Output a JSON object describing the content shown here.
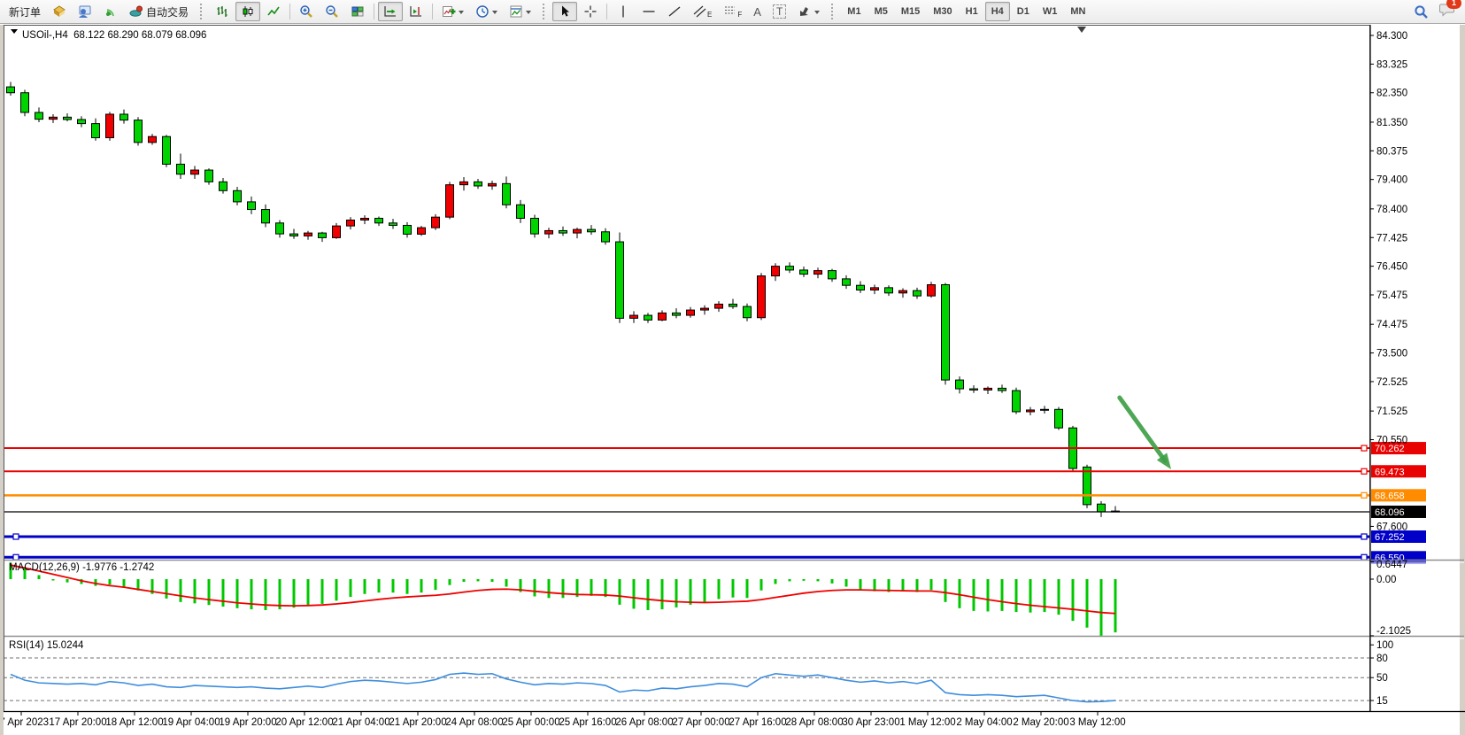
{
  "toolbar": {
    "new_order_label": "新订单",
    "autotrading_label": "自动交易",
    "text_tool_label": "A",
    "label_tool_label": "T",
    "channel_tool_sub": "E",
    "fibo_tool_sub": "F",
    "timeframes": [
      "M1",
      "M5",
      "M15",
      "M30",
      "H1",
      "H4",
      "D1",
      "W1",
      "MN"
    ],
    "active_timeframe": "H4",
    "notification_count": "1"
  },
  "chart": {
    "symbol_period": "USOil-,H4",
    "ohlc_text": "68.122 68.290 68.079 68.096",
    "macd_label": "MACD(12,26,9) -1.9776 -1.2742",
    "rsi_label": "RSI(14) 15.0244"
  },
  "chart_data": {
    "type": "candlestick",
    "title": "USOil-,H4",
    "main_ylim": [
      66.5,
      84.66
    ],
    "grid": "off",
    "price_axis_ticks": [
      84.3,
      83.325,
      82.35,
      81.35,
      80.375,
      79.4,
      78.4,
      77.425,
      76.45,
      75.475,
      74.475,
      73.5,
      72.525,
      71.525,
      70.55,
      67.6
    ],
    "time_labels": [
      "17 Apr 2023",
      "17 Apr 20:00",
      "18 Apr 12:00",
      "19 Apr 04:00",
      "19 Apr 20:00",
      "20 Apr 12:00",
      "21 Apr 04:00",
      "21 Apr 20:00",
      "24 Apr 08:00",
      "25 Apr 00:00",
      "25 Apr 16:00",
      "26 Apr 08:00",
      "27 Apr 00:00",
      "27 Apr 16:00",
      "28 Apr 08:00",
      "30 Apr 23:00",
      "1 May 12:00",
      "2 May 04:00",
      "2 May 20:00",
      "3 May 12:00"
    ],
    "colors": {
      "bull": "#f00000",
      "bear": "#00d400",
      "wick": "#000000",
      "macd_hist": "#00c800",
      "macd_signal": "#f00000",
      "rsi_line": "#3e8edd",
      "axis": "#000000"
    },
    "candles": [
      [
        82.55,
        82.72,
        82.25,
        82.35
      ],
      [
        82.35,
        82.45,
        81.55,
        81.68
      ],
      [
        81.68,
        81.85,
        81.35,
        81.45
      ],
      [
        81.45,
        81.62,
        81.32,
        81.52
      ],
      [
        81.52,
        81.65,
        81.38,
        81.44
      ],
      [
        81.44,
        81.55,
        81.18,
        81.3
      ],
      [
        81.3,
        81.48,
        80.72,
        80.82
      ],
      [
        80.82,
        81.7,
        80.72,
        81.62
      ],
      [
        81.62,
        81.78,
        81.3,
        81.42
      ],
      [
        81.42,
        81.52,
        80.55,
        80.66
      ],
      [
        80.66,
        80.95,
        80.58,
        80.86
      ],
      [
        80.86,
        80.92,
        79.82,
        79.92
      ],
      [
        79.92,
        80.28,
        79.42,
        79.58
      ],
      [
        79.58,
        79.86,
        79.42,
        79.72
      ],
      [
        79.72,
        79.78,
        79.22,
        79.32
      ],
      [
        79.32,
        79.45,
        78.92,
        79.02
      ],
      [
        79.02,
        79.15,
        78.52,
        78.64
      ],
      [
        78.64,
        78.82,
        78.22,
        78.38
      ],
      [
        78.38,
        78.55,
        77.78,
        77.92
      ],
      [
        77.92,
        78.02,
        77.42,
        77.55
      ],
      [
        77.55,
        77.72,
        77.38,
        77.48
      ],
      [
        77.48,
        77.65,
        77.35,
        77.58
      ],
      [
        77.58,
        77.62,
        77.28,
        77.42
      ],
      [
        77.42,
        77.92,
        77.38,
        77.82
      ],
      [
        77.82,
        78.12,
        77.7,
        78.02
      ],
      [
        78.02,
        78.18,
        77.88,
        78.08
      ],
      [
        78.08,
        78.14,
        77.82,
        77.92
      ],
      [
        77.92,
        78.06,
        77.72,
        77.84
      ],
      [
        77.84,
        77.95,
        77.42,
        77.54
      ],
      [
        77.54,
        77.82,
        77.48,
        77.76
      ],
      [
        77.76,
        78.22,
        77.68,
        78.12
      ],
      [
        78.12,
        79.32,
        78.05,
        79.22
      ],
      [
        79.22,
        79.48,
        79.02,
        79.32
      ],
      [
        79.32,
        79.42,
        79.08,
        79.18
      ],
      [
        79.18,
        79.36,
        79.05,
        79.26
      ],
      [
        79.26,
        79.5,
        78.42,
        78.54
      ],
      [
        78.54,
        78.7,
        77.92,
        78.08
      ],
      [
        78.08,
        78.2,
        77.42,
        77.55
      ],
      [
        77.55,
        77.76,
        77.4,
        77.66
      ],
      [
        77.66,
        77.8,
        77.48,
        77.58
      ],
      [
        77.58,
        77.76,
        77.4,
        77.7
      ],
      [
        77.7,
        77.85,
        77.52,
        77.62
      ],
      [
        77.62,
        77.74,
        77.18,
        77.28
      ],
      [
        77.28,
        77.6,
        74.52,
        74.68
      ],
      [
        74.68,
        74.92,
        74.52,
        74.78
      ],
      [
        74.78,
        74.86,
        74.52,
        74.62
      ],
      [
        74.62,
        74.95,
        74.58,
        74.86
      ],
      [
        74.86,
        75.02,
        74.68,
        74.78
      ],
      [
        74.78,
        75.06,
        74.7,
        74.96
      ],
      [
        74.96,
        75.12,
        74.8,
        75.02
      ],
      [
        75.02,
        75.26,
        74.9,
        75.16
      ],
      [
        75.16,
        75.34,
        75.0,
        75.08
      ],
      [
        75.08,
        75.18,
        74.58,
        74.7
      ],
      [
        74.7,
        76.22,
        74.62,
        76.12
      ],
      [
        76.12,
        76.55,
        75.95,
        76.45
      ],
      [
        76.45,
        76.58,
        76.22,
        76.32
      ],
      [
        76.32,
        76.44,
        76.08,
        76.18
      ],
      [
        76.18,
        76.4,
        76.04,
        76.3
      ],
      [
        76.3,
        76.36,
        75.92,
        76.02
      ],
      [
        76.02,
        76.14,
        75.68,
        75.8
      ],
      [
        75.8,
        75.94,
        75.54,
        75.64
      ],
      [
        75.64,
        75.82,
        75.5,
        75.72
      ],
      [
        75.72,
        75.8,
        75.44,
        75.54
      ],
      [
        75.54,
        75.7,
        75.38,
        75.62
      ],
      [
        75.62,
        75.72,
        75.34,
        75.44
      ],
      [
        75.44,
        75.92,
        75.38,
        75.82
      ],
      [
        75.82,
        75.88,
        72.42,
        72.58
      ],
      [
        72.58,
        72.7,
        72.12,
        72.28
      ],
      [
        72.28,
        72.4,
        72.14,
        72.24
      ],
      [
        72.24,
        72.36,
        72.1,
        72.3
      ],
      [
        72.3,
        72.42,
        72.14,
        72.22
      ],
      [
        72.22,
        72.32,
        71.42,
        71.5
      ],
      [
        71.5,
        71.66,
        71.38,
        71.56
      ],
      [
        71.56,
        71.7,
        71.44,
        71.58
      ],
      [
        71.58,
        71.66,
        70.88,
        70.95
      ],
      [
        70.95,
        71.02,
        69.48,
        69.57
      ],
      [
        69.62,
        69.7,
        68.22,
        68.34
      ],
      [
        68.36,
        68.46,
        67.92,
        68.1
      ],
      [
        68.122,
        68.29,
        68.079,
        68.096
      ]
    ],
    "price_levels": [
      {
        "price": 70.262,
        "label": "70.262",
        "color": "#e80202",
        "width": 2,
        "handles": "right"
      },
      {
        "price": 69.473,
        "label": "69.473",
        "color": "#e80202",
        "width": 2,
        "handles": "right"
      },
      {
        "price": 68.658,
        "label": "68.658",
        "color": "#ff8c00",
        "width": 2.5,
        "handles": "right"
      },
      {
        "price": 67.252,
        "label": "67.252",
        "color": "#0000c8",
        "width": 3,
        "handles": "both"
      },
      {
        "price": 66.55,
        "label": "66.550",
        "color": "#0000c8",
        "width": 3,
        "handles": "both"
      }
    ],
    "current_price": {
      "price": 68.096,
      "label": "68.096",
      "color": "#000000",
      "width": 1.3
    },
    "macd": {
      "label": "MACD(12,26,9) -1.9776 -1.2742",
      "axis_labels": [
        0.6447,
        0.0,
        -2.1025
      ],
      "histogram": [
        0.6447,
        0.4,
        0.15,
        -0.05,
        -0.12,
        -0.18,
        -0.25,
        -0.2,
        -0.28,
        -0.42,
        -0.55,
        -0.72,
        -0.85,
        -0.9,
        -0.96,
        -1.02,
        -1.08,
        -1.12,
        -1.15,
        -1.12,
        -1.06,
        -0.98,
        -0.92,
        -0.8,
        -0.66,
        -0.55,
        -0.5,
        -0.5,
        -0.55,
        -0.5,
        -0.4,
        -0.22,
        -0.1,
        -0.08,
        -0.1,
        -0.28,
        -0.48,
        -0.64,
        -0.7,
        -0.7,
        -0.66,
        -0.62,
        -0.66,
        -0.95,
        -1.1,
        -1.15,
        -1.12,
        -1.05,
        -0.95,
        -0.85,
        -0.74,
        -0.68,
        -0.7,
        -0.42,
        -0.18,
        -0.08,
        -0.06,
        -0.08,
        -0.16,
        -0.28,
        -0.4,
        -0.45,
        -0.48,
        -0.46,
        -0.48,
        -0.4,
        -0.85,
        -1.08,
        -1.18,
        -1.2,
        -1.18,
        -1.22,
        -1.24,
        -1.22,
        -1.32,
        -1.55,
        -1.8,
        -2.1025,
        -1.9776
      ],
      "signal": [
        0.52,
        0.42,
        0.3,
        0.18,
        0.06,
        -0.06,
        -0.16,
        -0.24,
        -0.3,
        -0.38,
        -0.46,
        -0.54,
        -0.62,
        -0.7,
        -0.76,
        -0.82,
        -0.88,
        -0.92,
        -0.96,
        -0.98,
        -0.99,
        -0.98,
        -0.96,
        -0.92,
        -0.87,
        -0.81,
        -0.75,
        -0.7,
        -0.66,
        -0.63,
        -0.6,
        -0.55,
        -0.48,
        -0.42,
        -0.38,
        -0.37,
        -0.4,
        -0.45,
        -0.5,
        -0.54,
        -0.57,
        -0.58,
        -0.59,
        -0.63,
        -0.69,
        -0.75,
        -0.8,
        -0.84,
        -0.86,
        -0.87,
        -0.86,
        -0.84,
        -0.82,
        -0.76,
        -0.68,
        -0.6,
        -0.52,
        -0.46,
        -0.42,
        -0.4,
        -0.4,
        -0.41,
        -0.42,
        -0.43,
        -0.44,
        -0.44,
        -0.5,
        -0.58,
        -0.67,
        -0.76,
        -0.84,
        -0.91,
        -0.97,
        -1.02,
        -1.07,
        -1.12,
        -1.18,
        -1.24,
        -1.2742
      ]
    },
    "rsi": {
      "label": "RSI(14) 15.0244",
      "axis_labels": [
        100,
        80,
        50,
        15
      ],
      "levels": [
        80,
        50,
        15
      ],
      "values": [
        55,
        46,
        42,
        41,
        40,
        41,
        39,
        44,
        42,
        38,
        40,
        36,
        35,
        38,
        37,
        36,
        35,
        36,
        34,
        33,
        35,
        37,
        35,
        40,
        44,
        46,
        45,
        43,
        41,
        43,
        47,
        55,
        57,
        55,
        56,
        48,
        43,
        39,
        41,
        40,
        42,
        41,
        38,
        28,
        31,
        30,
        34,
        33,
        36,
        38,
        41,
        40,
        36,
        50,
        56,
        54,
        52,
        54,
        50,
        46,
        43,
        45,
        42,
        44,
        41,
        46,
        27,
        24,
        23,
        24,
        23,
        21,
        22,
        23,
        19,
        15,
        13,
        13.5,
        15.0244
      ]
    },
    "annotation_arrow": {
      "bar_from": 78.3,
      "price_from": 71.98,
      "bar_to": 81.94,
      "price_to": 69.54,
      "color": "#3fa046"
    }
  }
}
